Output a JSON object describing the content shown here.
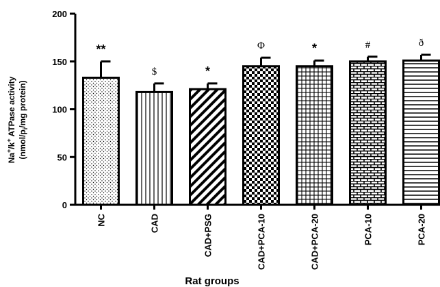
{
  "chart_data": {
    "type": "bar",
    "title": "",
    "xlabel": "Rat groups",
    "ylabel_line1_parts": [
      "Na",
      "+",
      "/k",
      "+",
      " ATPase activity"
    ],
    "ylabel_line2_parts": [
      "(nmol/p",
      "i",
      "/mg protein)"
    ],
    "ylim": [
      0,
      200
    ],
    "yticks": [
      "0",
      "50",
      "100",
      "150",
      "200"
    ],
    "categories": [
      "NC",
      "CAD",
      "CAD+PSG",
      "CAD+PCA-10",
      "CAD+PCA-20",
      "PCA-10",
      "PCA-20"
    ],
    "values": [
      133,
      118,
      121,
      145,
      145,
      150,
      151
    ],
    "errors": [
      17,
      9,
      6,
      9,
      6,
      5,
      6
    ],
    "annotations": [
      "**",
      "$",
      "*",
      "Φ",
      "*",
      "#",
      "ð"
    ],
    "patterns": [
      "dots",
      "vertical",
      "diagonal",
      "checker",
      "grid",
      "brick",
      "horizontal"
    ],
    "grid": false,
    "legend": "none"
  }
}
